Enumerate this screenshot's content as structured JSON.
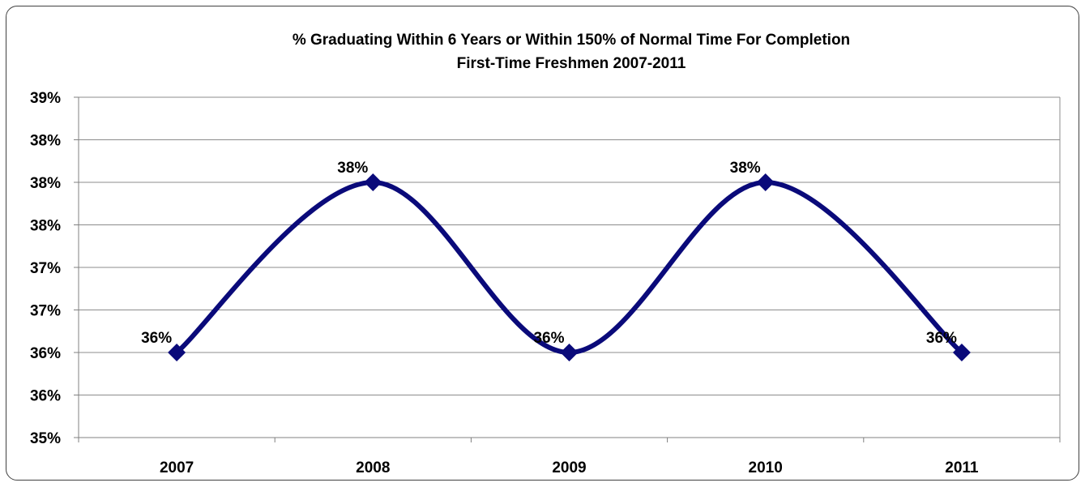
{
  "chart_data": {
    "type": "line",
    "title": [
      "% Graduating Within 6 Years or Within 150% of Normal Time For Completion",
      "First-Time Freshmen 2007-2011"
    ],
    "categories": [
      "2007",
      "2008",
      "2009",
      "2010",
      "2011"
    ],
    "series": [
      {
        "values": [
          36.0,
          38.0,
          36.0,
          38.0,
          36.0
        ],
        "labels": [
          "36%",
          "38%",
          "36%",
          "38%",
          "36%"
        ],
        "color": "#0a0a7a",
        "marker": "diamond",
        "smooth": true
      }
    ],
    "ylim": [
      35.0,
      39.0
    ],
    "yticks": [
      35.0,
      35.5,
      36.0,
      36.5,
      37.0,
      37.5,
      38.0,
      38.5,
      39.0
    ],
    "ytick_labels": [
      "35%",
      "36%",
      "36%",
      "37%",
      "37%",
      "38%",
      "38%",
      "38%",
      "39%"
    ],
    "xlabel": "",
    "ylabel": "",
    "grid": "horizontal",
    "legend": "none"
  }
}
